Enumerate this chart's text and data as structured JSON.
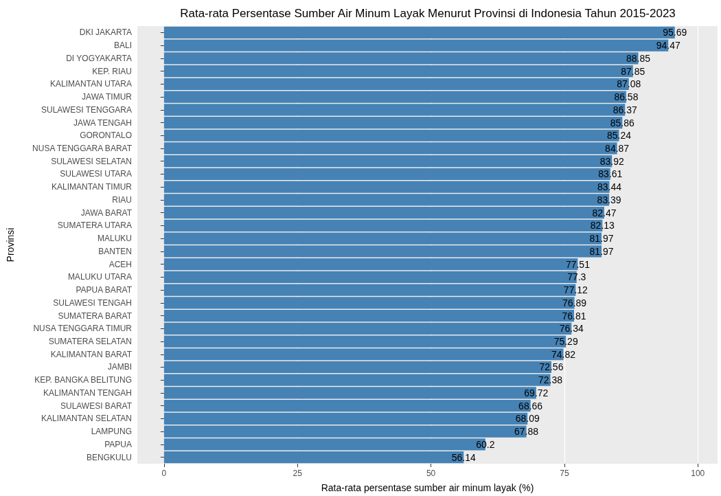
{
  "chart_data": {
    "type": "bar",
    "orientation": "horizontal",
    "title": "Rata-rata Persentase Sumber Air Minum Layak Menurut Provinsi di Indonesia Tahun 2015-2023",
    "xlabel": "Rata-rata persentase sumber air minum layak (%)",
    "ylabel": "Provinsi",
    "categories": [
      "DKI JAKARTA",
      "BALI",
      "DI YOGYAKARTA",
      "KEP. RIAU",
      "KALIMANTAN UTARA",
      "JAWA TIMUR",
      "SULAWESI TENGGARA",
      "JAWA TENGAH",
      "GORONTALO",
      "NUSA TENGGARA BARAT",
      "SULAWESI SELATAN",
      "SULAWESI UTARA",
      "KALIMANTAN TIMUR",
      "RIAU",
      "JAWA BARAT",
      "SUMATERA UTARA",
      "MALUKU",
      "BANTEN",
      "ACEH",
      "MALUKU UTARA",
      "PAPUA BARAT",
      "SULAWESI TENGAH",
      "SUMATERA BARAT",
      "NUSA TENGGARA TIMUR",
      "SUMATERA SELATAN",
      "KALIMANTAN BARAT",
      "JAMBI",
      "KEP. BANGKA BELITUNG",
      "KALIMANTAN TENGAH",
      "SULAWESI BARAT",
      "KALIMANTAN SELATAN",
      "LAMPUNG",
      "PAPUA",
      "BENGKULU"
    ],
    "values": [
      95.69,
      94.47,
      88.85,
      87.85,
      87.08,
      86.58,
      86.37,
      85.86,
      85.24,
      84.87,
      83.92,
      83.61,
      83.44,
      83.39,
      82.47,
      82.13,
      81.97,
      81.97,
      77.51,
      77.3,
      77.12,
      76.89,
      76.81,
      76.34,
      75.29,
      74.82,
      72.56,
      72.38,
      69.72,
      68.66,
      68.09,
      67.88,
      60.2,
      56.14
    ],
    "color": "#4682b4",
    "data_labels": true,
    "xlim": [
      -5,
      103.7
    ],
    "xticks": [
      0,
      25,
      50,
      75,
      100
    ],
    "grid": "x"
  }
}
